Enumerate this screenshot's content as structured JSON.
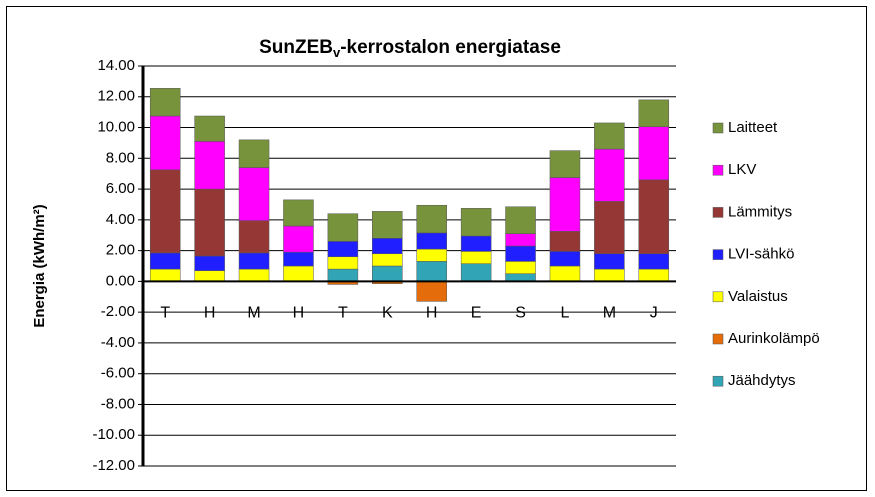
{
  "chart_data": {
    "type": "stacked-bar",
    "title": [
      "SunZEB",
      "v",
      "-kerrostalon energiatase"
    ],
    "y_label": "Energia (kWh/m²)",
    "categories": [
      "T",
      "H",
      "M",
      "H",
      "T",
      "K",
      "H",
      "E",
      "S",
      "L",
      "M",
      "J"
    ],
    "series": [
      {
        "name": "Laitteet",
        "color": "#77933c",
        "values": [
          1.8,
          1.65,
          1.8,
          1.7,
          1.8,
          1.75,
          1.8,
          1.8,
          1.75,
          1.75,
          1.7,
          1.75
        ]
      },
      {
        "name": "LKV",
        "color": "#ff00ff",
        "values": [
          3.5,
          3.1,
          3.45,
          1.7,
          0,
          0,
          0,
          0,
          0.8,
          3.5,
          3.4,
          3.45
        ]
      },
      {
        "name": "Lämmitys",
        "color": "#953735",
        "values": [
          5.4,
          4.35,
          2.1,
          0,
          0,
          0,
          0,
          0,
          0,
          1.3,
          3.4,
          4.8
        ]
      },
      {
        "name": "LVI-sähkö",
        "color": "#1f1fff",
        "values": [
          1.05,
          0.95,
          1.05,
          0.9,
          1.0,
          1.0,
          1.05,
          1.0,
          1.0,
          0.95,
          1.0,
          1.0
        ]
      },
      {
        "name": "Valaistus",
        "color": "#ffff00",
        "values": [
          0.8,
          0.7,
          0.8,
          1.0,
          0.8,
          0.8,
          0.8,
          0.8,
          0.8,
          1.0,
          0.8,
          0.8
        ]
      },
      {
        "name": "Aurinkolämpö",
        "color": "#e46c0a",
        "values": [
          0,
          0,
          0,
          0,
          -0.2,
          -0.15,
          -1.3,
          0,
          0,
          0,
          0,
          0
        ]
      },
      {
        "name": "Jäähdytys",
        "color": "#31a5b5",
        "values": [
          0,
          0,
          0,
          0,
          0.8,
          1.0,
          1.3,
          1.15,
          0.5,
          0,
          0,
          0
        ]
      }
    ],
    "ylim": [
      -12,
      14
    ],
    "yticks": [
      {
        "value": -12,
        "label": "-12.00"
      },
      {
        "value": -10,
        "label": "-10.00"
      },
      {
        "value": -8,
        "label": "-8.00"
      },
      {
        "value": -6,
        "label": "-6.00"
      },
      {
        "value": -4,
        "label": "-4.00"
      },
      {
        "value": -2,
        "label": "-2.00"
      },
      {
        "value": 0,
        "label": "0.00"
      },
      {
        "value": 2,
        "label": "2.00"
      },
      {
        "value": 4,
        "label": "4.00"
      },
      {
        "value": 6,
        "label": "6.00"
      },
      {
        "value": 8,
        "label": "8.00"
      },
      {
        "value": 10,
        "label": "10.00"
      },
      {
        "value": 12,
        "label": "12.00"
      },
      {
        "value": 14,
        "label": "14.00"
      }
    ],
    "grid": true,
    "legend": "right"
  }
}
